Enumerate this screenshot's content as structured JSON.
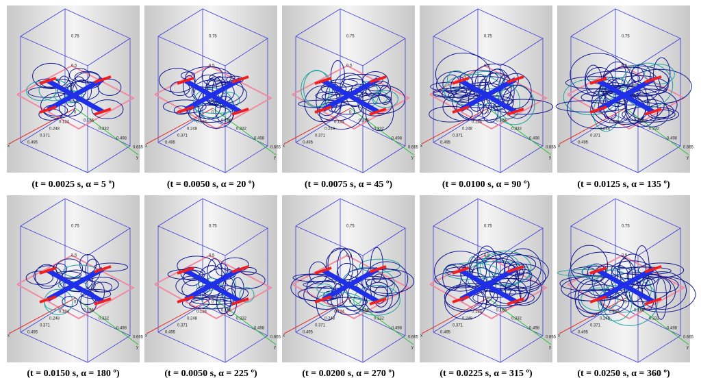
{
  "panels": [
    {
      "caption": "(t = 0.0025 s, α = 5 º)"
    },
    {
      "caption": "(t = 0.0050 s, α = 20 º)"
    },
    {
      "caption": "(t = 0.0075 s, α = 45 º)"
    },
    {
      "caption": "(t = 0.0100 s, α = 90 º)"
    },
    {
      "caption": "(t = 0.0125 s, α = 135 º)"
    },
    {
      "caption": "(t = 0.0150 s, α = 180 º)"
    },
    {
      "caption": "(t = 0.0050 s, α = 225 º)"
    },
    {
      "caption": "(t = 0.0200 s, α = 270 º)"
    },
    {
      "caption": "(t = 0.0225 s, α = 315 º)"
    },
    {
      "caption": "(t = 0.0250 s, α = 360 º)"
    }
  ],
  "axis_labels": {
    "z": [
      "0.75",
      "0.5",
      "0"
    ],
    "x": [
      "0.124",
      "0.248",
      "0.371",
      "0.495"
    ],
    "y": [
      "0.166",
      "0.332",
      "0.498",
      "0.665"
    ],
    "x_name": "x",
    "y_name": "y"
  }
}
